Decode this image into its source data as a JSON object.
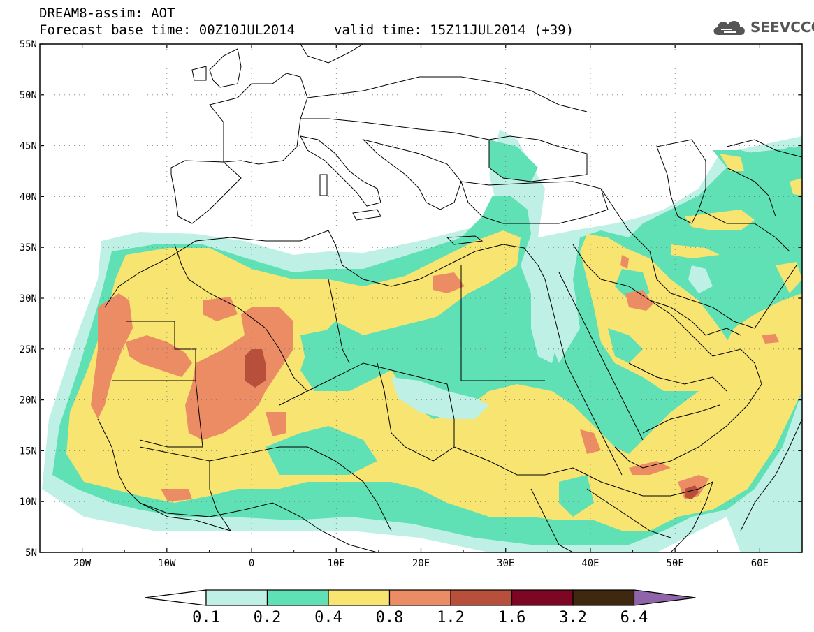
{
  "header": {
    "title": "DREAM8-assim: AOT",
    "base_time": "Forecast base time: 00Z10JUL2014",
    "valid_time": "valid time: 15Z11JUL2014 (+39)"
  },
  "logo": {
    "text": "SEEVCCC",
    "icon": "cloud-icon"
  },
  "map": {
    "lon_ticks": [
      "20W",
      "10W",
      "0",
      "10E",
      "20E",
      "30E",
      "40E",
      "50E",
      "60E"
    ],
    "lat_ticks": [
      "55N",
      "50N",
      "45N",
      "40N",
      "35N",
      "30N",
      "25N",
      "20N",
      "15N",
      "10N",
      "5N"
    ],
    "lon_range": [
      -25,
      65
    ],
    "lat_range": [
      5,
      55
    ]
  },
  "colorbar": {
    "labels": [
      "0.1",
      "0.2",
      "0.4",
      "0.8",
      "1.2",
      "1.6",
      "3.2",
      "6.4"
    ],
    "colors": [
      "#ffffff",
      "#bff0e6",
      "#5fe0b5",
      "#f7e471",
      "#ec8c64",
      "#b84f3b",
      "#7d0625",
      "#3f2810",
      "#9064a8"
    ]
  }
}
